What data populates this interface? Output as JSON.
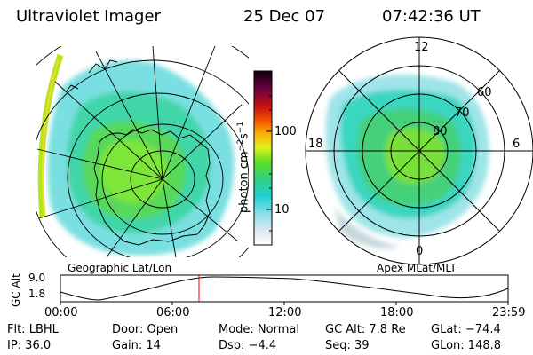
{
  "header": {
    "instrument": "Ultraviolet Imager",
    "date": "25 Dec 07",
    "time": "07:42:36 UT"
  },
  "colorbar": {
    "unit_label": "photon cm",
    "unit_exp1": "−2",
    "unit_mid": "s",
    "unit_exp2": "−1",
    "ticks": [
      "100",
      "10"
    ],
    "scale": "log"
  },
  "left_map": {
    "caption": "Geographic Lat/Lon"
  },
  "right_map": {
    "caption": "Apex MLat/MLT",
    "mlt_labels": {
      "top": "12",
      "left": "18",
      "right": "6",
      "bottom": "0"
    },
    "mlat_labels": [
      "60",
      "70",
      "80"
    ]
  },
  "altitude_plot": {
    "ylabel": "GC Alt",
    "y_ticks": [
      "9.0",
      "1.8"
    ],
    "x_ticks": [
      "00:00",
      "06:00",
      "12:00",
      "18:00",
      "23:59"
    ],
    "current_marker_time": "07:42:36",
    "marker_color": "#ff0000"
  },
  "status": {
    "row1": {
      "filter": "Flt: LBHL",
      "door": "Door: Open",
      "mode": "Mode: Normal",
      "gc_alt": "GC Alt: 7.8 Re",
      "glat": "GLat: −74.4"
    },
    "row2": {
      "ip": "IP: 36.0",
      "gain": "Gain: 14",
      "dsp": "Dsp:   −4.4",
      "seq": "Seq: 39",
      "glon": "GLon: 148.8"
    }
  }
}
